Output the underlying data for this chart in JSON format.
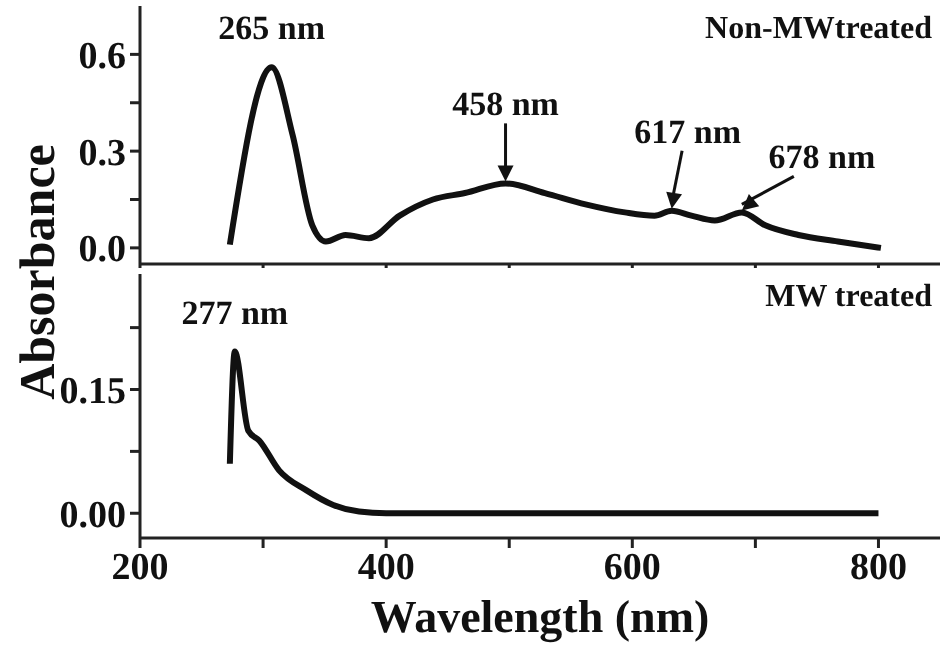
{
  "chart_data": [
    {
      "type": "line",
      "ylabel": "Absorbance",
      "xlim": [
        200,
        850
      ],
      "xticks": [
        200,
        {
          "value": 300,
          "label": null
        },
        400,
        {
          "value": 500,
          "label": null
        },
        600,
        {
          "value": 700,
          "label": null
        },
        800
      ],
      "ylim": [
        -0.05,
        0.75
      ],
      "yticks": [
        {
          "value": 0,
          "label": "0.0"
        },
        {
          "value": 0.15,
          "label": null
        },
        {
          "value": 0.3,
          "label": "0.3"
        },
        {
          "value": 0.45,
          "label": null
        },
        {
          "value": 0.6,
          "label": "0.6"
        }
      ],
      "tick_labels": "y",
      "marker": "none",
      "line_style": "solid",
      "annotations": [
        {
          "text": "265 nm",
          "x": 307,
          "y": 0.56
        },
        {
          "text": "458 nm",
          "x": 497,
          "y": 0.2
        },
        {
          "text": "617 nm",
          "x": 632,
          "y": 0.115
        },
        {
          "text": "678 nm",
          "x": 689,
          "y": 0.11
        }
      ],
      "series": [
        {
          "name": "Non-MWtreated",
          "color": "#111111",
          "x": [
            273,
            307,
            324,
            340,
            351,
            367,
            386,
            411,
            438,
            464,
            497,
            529,
            562,
            594,
            618,
            632,
            648,
            667,
            689,
            708,
            735,
            767,
            802
          ],
          "values": [
            0.01,
            0.56,
            0.35,
            0.07,
            0.02,
            0.04,
            0.03,
            0.1,
            0.15,
            0.17,
            0.2,
            0.17,
            0.135,
            0.11,
            0.1,
            0.115,
            0.1,
            0.085,
            0.11,
            0.07,
            0.04,
            0.02,
            0.0
          ]
        }
      ]
    },
    {
      "type": "line",
      "xlabel": "Wavelength (nm)",
      "xlim": [
        200,
        850
      ],
      "xticks": [
        200,
        {
          "value": 300,
          "label": null
        },
        400,
        {
          "value": 500,
          "label": null
        },
        600,
        {
          "value": 700,
          "label": null
        },
        800
      ],
      "ylim": [
        -0.03,
        0.29
      ],
      "yticks": [
        {
          "value": 0,
          "label": "0.00"
        },
        {
          "value": 0.075,
          "label": null
        },
        {
          "value": 0.15,
          "label": "0.15"
        },
        {
          "value": 0.225,
          "label": null
        }
      ],
      "marker": "none",
      "line_style": "solid",
      "annotations": [
        {
          "text": "277 nm",
          "x": 277,
          "y": 0.196
        }
      ],
      "series": [
        {
          "name": "MW treated",
          "color": "#111111",
          "x": [
            273,
            277,
            288,
            297,
            313,
            335,
            357,
            378,
            400,
            500,
            600,
            700,
            800
          ],
          "values": [
            0.06,
            0.196,
            0.1,
            0.088,
            0.052,
            0.028,
            0.01,
            0.002,
            0,
            0,
            0,
            0,
            0
          ]
        }
      ]
    }
  ]
}
